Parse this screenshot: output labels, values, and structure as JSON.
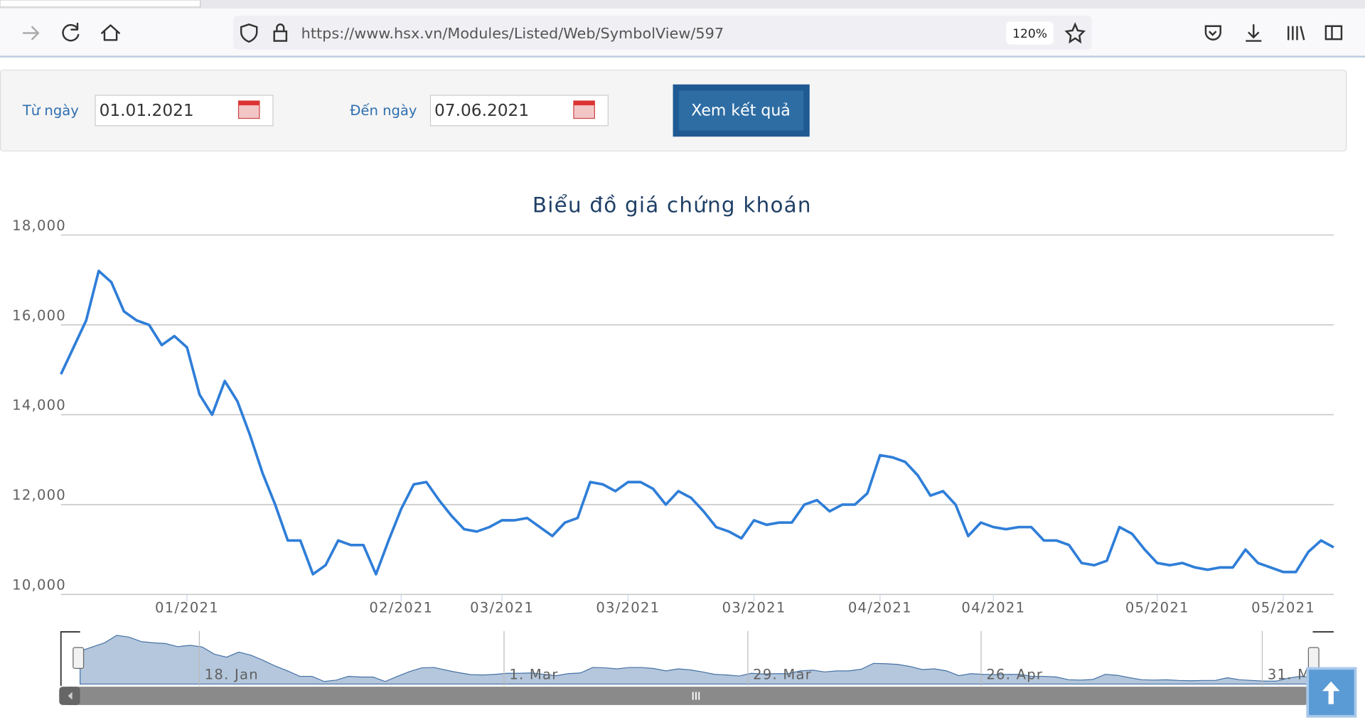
{
  "browser": {
    "url": "https://www.hsx.vn/Modules/Listed/Web/SymbolView/597",
    "zoom": "120%"
  },
  "form": {
    "from_label": "Từ ngày",
    "from_value": "01.01.2021",
    "to_label": "Đến ngày",
    "to_value": "07.06.2021",
    "button": "Xem kết quả"
  },
  "chart_data": {
    "type": "line",
    "title": "Biểu đồ giá chứng khoán",
    "color": "#2f7ed8",
    "grid": true,
    "categories": [
      null,
      null,
      null,
      null,
      null,
      null,
      null,
      null,
      null,
      null,
      "01/2021",
      null,
      null,
      null,
      null,
      null,
      null,
      null,
      null,
      null,
      null,
      null,
      null,
      null,
      null,
      null,
      null,
      "02/2021",
      null,
      null,
      null,
      null,
      null,
      null,
      null,
      "03/2021",
      null,
      null,
      null,
      null,
      null,
      null,
      null,
      null,
      null,
      "03/2021",
      null,
      null,
      null,
      null,
      null,
      null,
      null,
      null,
      null,
      "03/2021",
      null,
      null,
      null,
      null,
      null,
      null,
      null,
      null,
      null,
      "04/2021",
      null,
      null,
      null,
      null,
      null,
      null,
      null,
      null,
      "04/2021",
      null,
      null,
      null,
      null,
      null,
      null,
      null,
      null,
      null,
      null,
      null,
      null,
      "05/2021",
      null,
      null,
      null,
      null,
      null,
      null,
      null,
      null,
      null,
      "05/2021",
      null,
      null,
      null,
      null
    ],
    "values": [
      14900,
      15500,
      16100,
      17200,
      16950,
      16300,
      16100,
      16000,
      15550,
      15750,
      15500,
      14450,
      14000,
      14750,
      14300,
      13550,
      12700,
      12000,
      11200,
      11200,
      10450,
      10650,
      11200,
      11100,
      11100,
      10450,
      11200,
      11900,
      12450,
      12500,
      12100,
      11750,
      11450,
      11400,
      11500,
      11650,
      11650,
      11700,
      11500,
      11300,
      11600,
      11700,
      12500,
      12450,
      12300,
      12500,
      12500,
      12350,
      12000,
      12300,
      12150,
      11850,
      11500,
      11400,
      11250,
      11650,
      11550,
      11600,
      11600,
      12000,
      12100,
      11850,
      12000,
      12000,
      12250,
      13100,
      13050,
      12950,
      12650,
      12200,
      12300,
      12000,
      11300,
      11600,
      11500,
      11450,
      11500,
      11500,
      11200,
      11200,
      11100,
      10700,
      10650,
      10750,
      11500,
      11350,
      11000,
      10700,
      10650,
      10700,
      10600,
      10550,
      10600,
      10600,
      11000,
      10700,
      10600,
      10500,
      10500,
      10950,
      11200,
      11050
    ],
    "ylim": [
      10000,
      18000
    ],
    "yticks": [
      {
        "value": 10000,
        "label": "10,000"
      },
      {
        "value": 12000,
        "label": "12,000"
      },
      {
        "value": 14000,
        "label": "14,000"
      },
      {
        "value": 16000,
        "label": "16,000"
      },
      {
        "value": 18000,
        "label": "18,000"
      }
    ],
    "navigator_labels": [
      "18. Jan",
      "1. Mar",
      "29. Mar",
      "26. Apr",
      "31. M"
    ]
  }
}
